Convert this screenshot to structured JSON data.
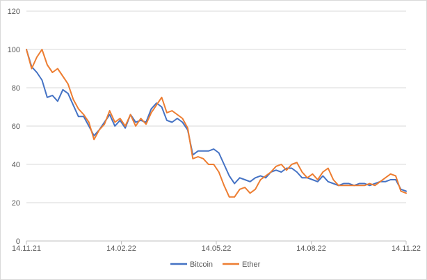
{
  "chart_data": {
    "type": "line",
    "title": "",
    "xlabel": "",
    "ylabel": "",
    "ylim": [
      0,
      120
    ],
    "y_ticks": [
      "0",
      "20",
      "40",
      "60",
      "80",
      "100",
      "120"
    ],
    "x_ticks": [
      "14.11.21",
      "14.02.22",
      "14.05.22",
      "14.08.22",
      "14.11.22"
    ],
    "grid": "horizontal",
    "legend_position": "bottom",
    "x_days": [
      0,
      5,
      10,
      15,
      20,
      25,
      30,
      35,
      40,
      45,
      50,
      55,
      60,
      65,
      70,
      75,
      80,
      85,
      90,
      95,
      100,
      105,
      110,
      115,
      120,
      125,
      130,
      135,
      140,
      145,
      150,
      155,
      160,
      165,
      170,
      175,
      180,
      185,
      190,
      195,
      200,
      205,
      210,
      215,
      220,
      225,
      230,
      235,
      240,
      245,
      250,
      255,
      260,
      265,
      270,
      275,
      280,
      285,
      290,
      295,
      300,
      305,
      310,
      315,
      320,
      325,
      330,
      335,
      340,
      345,
      350,
      355,
      360,
      365
    ],
    "series": [
      {
        "name": "Bitcoin",
        "color": "#4472c4",
        "values": [
          100,
          91,
          88,
          84,
          75,
          76,
          73,
          79,
          77,
          71,
          65,
          65,
          60,
          55,
          58,
          62,
          66,
          60,
          63,
          59,
          66,
          62,
          63,
          62,
          69,
          72,
          70,
          63,
          62,
          64,
          62,
          58,
          45,
          47,
          47,
          47,
          48,
          46,
          40,
          34,
          30,
          33,
          32,
          31,
          33,
          34,
          33,
          36,
          37,
          36,
          38,
          38,
          36,
          33,
          33,
          32,
          31,
          34,
          31,
          30,
          29,
          30,
          30,
          29,
          30,
          30,
          29,
          30,
          31,
          31,
          32,
          32,
          27,
          26
        ]
      },
      {
        "name": "Ether",
        "color": "#ed7d31",
        "values": [
          100,
          90,
          96,
          100,
          92,
          88,
          90,
          86,
          82,
          74,
          69,
          66,
          62,
          53,
          58,
          61,
          68,
          62,
          64,
          60,
          66,
          60,
          64,
          61,
          67,
          71,
          75,
          67,
          68,
          66,
          64,
          59,
          43,
          44,
          43,
          40,
          40,
          36,
          29,
          23,
          23,
          27,
          28,
          25,
          27,
          32,
          34,
          36,
          39,
          40,
          37,
          40,
          41,
          36,
          33,
          35,
          32,
          36,
          38,
          32,
          29,
          29,
          29,
          29,
          29,
          29,
          30,
          29,
          31,
          33,
          35,
          34,
          26,
          25
        ]
      }
    ]
  }
}
